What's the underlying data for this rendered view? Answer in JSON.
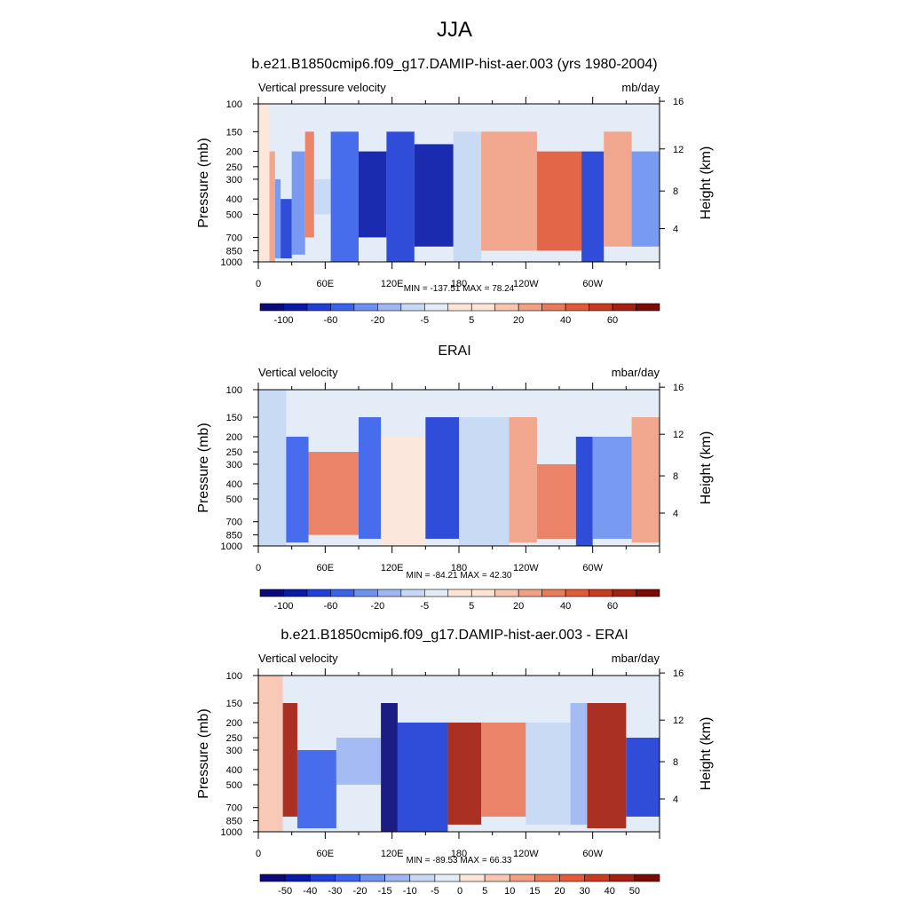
{
  "title": "JJA",
  "panels": [
    {
      "title": "b.e21.B1850cmip6.f09_g17.DAMIP-hist-aer.003 (yrs 1980-2004)",
      "variable": "Vertical pressure velocity",
      "units": "mb/day",
      "stats": "MIN = -137.51  MAX =  78.24",
      "colorbar_labels": [
        "-100",
        "-60",
        "-20",
        "-5",
        "5",
        "20",
        "40",
        "60"
      ],
      "field": [
        {
          "lon": 0,
          "p": [
            100,
            1000
          ],
          "v": 5
        },
        {
          "lon": 10,
          "p": [
            200,
            1000
          ],
          "v": 20
        },
        {
          "lon": 15,
          "p": [
            300,
            950
          ],
          "v": -20
        },
        {
          "lon": 20,
          "p": [
            400,
            950
          ],
          "v": -60
        },
        {
          "lon": 30,
          "p": [
            200,
            900
          ],
          "v": -20
        },
        {
          "lon": 42,
          "p": [
            150,
            700
          ],
          "v": 30
        },
        {
          "lon": 50,
          "p": [
            300,
            500
          ],
          "v": -5
        },
        {
          "lon": 65,
          "p": [
            150,
            1000
          ],
          "v": -40
        },
        {
          "lon": 90,
          "p": [
            200,
            700
          ],
          "v": -80
        },
        {
          "lon": 115,
          "p": [
            150,
            1000
          ],
          "v": -60
        },
        {
          "lon": 140,
          "p": [
            180,
            800
          ],
          "v": -80
        },
        {
          "lon": 175,
          "p": [
            150,
            1000
          ],
          "v": -5
        },
        {
          "lon": 200,
          "p": [
            150,
            850
          ],
          "v": 20
        },
        {
          "lon": 250,
          "p": [
            200,
            850
          ],
          "v": 40
        },
        {
          "lon": 290,
          "p": [
            200,
            1000
          ],
          "v": -60
        },
        {
          "lon": 310,
          "p": [
            150,
            800
          ],
          "v": 20
        },
        {
          "lon": 335,
          "p": [
            200,
            800
          ],
          "v": -20
        }
      ]
    },
    {
      "title": "ERAI",
      "variable": "Vertical velocity",
      "units": "mbar/day",
      "stats": "MIN = -84.21  MAX =  42.30",
      "colorbar_labels": [
        "-100",
        "-60",
        "-20",
        "-5",
        "5",
        "20",
        "40",
        "60"
      ],
      "field": [
        {
          "lon": 0,
          "p": [
            100,
            1000
          ],
          "v": -5
        },
        {
          "lon": 25,
          "p": [
            200,
            950
          ],
          "v": -40
        },
        {
          "lon": 45,
          "p": [
            250,
            850
          ],
          "v": 30
        },
        {
          "lon": 90,
          "p": [
            150,
            900
          ],
          "v": -40
        },
        {
          "lon": 110,
          "p": [
            200,
            1000
          ],
          "v": 5
        },
        {
          "lon": 150,
          "p": [
            150,
            900
          ],
          "v": -60
        },
        {
          "lon": 180,
          "p": [
            150,
            1000
          ],
          "v": -5
        },
        {
          "lon": 225,
          "p": [
            150,
            950
          ],
          "v": 20
        },
        {
          "lon": 250,
          "p": [
            300,
            900
          ],
          "v": 30
        },
        {
          "lon": 285,
          "p": [
            200,
            1000
          ],
          "v": -60
        },
        {
          "lon": 300,
          "p": [
            200,
            900
          ],
          "v": -20
        },
        {
          "lon": 335,
          "p": [
            150,
            950
          ],
          "v": 20
        }
      ]
    },
    {
      "title": "b.e21.B1850cmip6.f09_g17.DAMIP-hist-aer.003 - ERAI",
      "variable": "Vertical velocity",
      "units": "mbar/day",
      "stats": "MIN = -89.53  MAX =  66.33",
      "colorbar_labels": [
        "-50",
        "-40",
        "-30",
        "-20",
        "-15",
        "-10",
        "-5",
        "0",
        "5",
        "10",
        "15",
        "20",
        "30",
        "40",
        "50"
      ],
      "field": [
        {
          "lon": 0,
          "p": [
            100,
            1000
          ],
          "v": 5
        },
        {
          "lon": 22,
          "p": [
            150,
            800
          ],
          "v": 40
        },
        {
          "lon": 35,
          "p": [
            300,
            950
          ],
          "v": -20
        },
        {
          "lon": 70,
          "p": [
            250,
            500
          ],
          "v": -10
        },
        {
          "lon": 110,
          "p": [
            150,
            1000
          ],
          "v": -50
        },
        {
          "lon": 125,
          "p": [
            200,
            1000
          ],
          "v": -30
        },
        {
          "lon": 170,
          "p": [
            200,
            900
          ],
          "v": 40
        },
        {
          "lon": 200,
          "p": [
            200,
            800
          ],
          "v": 15
        },
        {
          "lon": 240,
          "p": [
            200,
            900
          ],
          "v": -5
        },
        {
          "lon": 280,
          "p": [
            150,
            900
          ],
          "v": -10
        },
        {
          "lon": 295,
          "p": [
            150,
            950
          ],
          "v": 40
        },
        {
          "lon": 330,
          "p": [
            250,
            800
          ],
          "v": -30
        }
      ]
    }
  ],
  "axes": {
    "ylabel_left": "Pressure (mb)",
    "ylabel_right": "Height (km)",
    "pressure_ticks": [
      "100",
      "150",
      "200",
      "250",
      "300",
      "400",
      "500",
      "700",
      "850",
      "1000"
    ],
    "height_ticks": [
      "4",
      "8",
      "12",
      "16"
    ],
    "x_ticks": [
      "0",
      "60E",
      "120E",
      "180",
      "120W",
      "60W"
    ],
    "x_range": [
      0,
      360
    ],
    "p_range": [
      100,
      1000
    ],
    "y_scale": "log"
  },
  "chart_data": [
    {
      "type": "heatmap",
      "title": "b.e21.B1850cmip6.f09_g17.DAMIP-hist-aer.003 (yrs 1980-2004)",
      "xlabel": "",
      "ylabel": "Pressure (mb)",
      "xlim": [
        0,
        360
      ],
      "ylim": [
        1000,
        100
      ],
      "levels": [
        -100,
        -80,
        -60,
        -40,
        -20,
        -10,
        -5,
        0,
        5,
        10,
        20,
        30,
        40,
        50,
        60,
        70
      ]
    },
    {
      "type": "heatmap",
      "title": "ERAI",
      "xlabel": "",
      "ylabel": "Pressure (mb)",
      "xlim": [
        0,
        360
      ],
      "ylim": [
        1000,
        100
      ],
      "levels": [
        -100,
        -80,
        -60,
        -40,
        -20,
        -10,
        -5,
        0,
        5,
        10,
        20,
        30,
        40,
        50,
        60,
        70
      ]
    },
    {
      "type": "heatmap",
      "title": "b.e21.B1850cmip6.f09_g17.DAMIP-hist-aer.003 - ERAI",
      "xlabel": "",
      "ylabel": "Pressure (mb)",
      "xlim": [
        0,
        360
      ],
      "ylim": [
        1000,
        100
      ],
      "levels": [
        -50,
        -40,
        -30,
        -20,
        -15,
        -10,
        -5,
        0,
        5,
        10,
        15,
        20,
        30,
        40,
        50
      ]
    }
  ],
  "colors": {
    "palette": [
      "#0a0a7a",
      "#0a1aa8",
      "#1f3fd6",
      "#3a62ea",
      "#6f92f0",
      "#9fb6f2",
      "#c7d8f4",
      "#e3ecf7",
      "#fde6d8",
      "#f8c6b0",
      "#f29f84",
      "#ea7a5a",
      "#e25a37",
      "#c93a1e",
      "#a52010",
      "#7a0a05"
    ]
  }
}
